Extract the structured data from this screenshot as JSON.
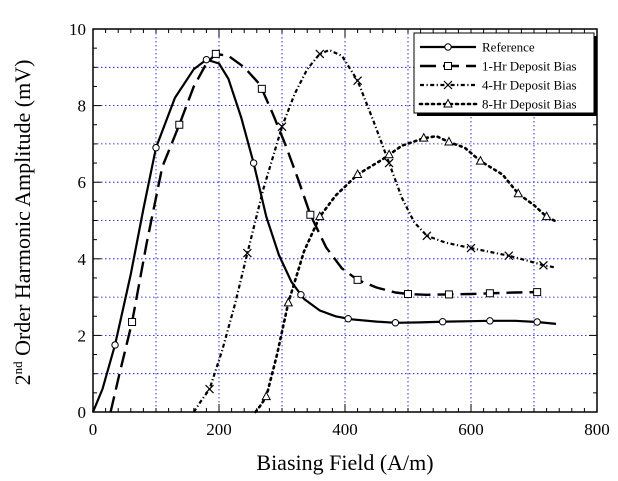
{
  "chart_data": {
    "type": "line",
    "xlabel": "Biasing Field (A/m)",
    "ylabel_sup": "nd",
    "ylabel_pre": "2",
    "ylabel_rest": " Order Harmonic Amplitude (mV)",
    "xlim": [
      0,
      800
    ],
    "ylim": [
      0,
      10
    ],
    "xticks": [
      0,
      200,
      400,
      600,
      800
    ],
    "yticks": [
      0,
      2,
      4,
      6,
      8,
      10
    ],
    "x_minor_step": 20,
    "y_minor_step": 0.5,
    "grid": true,
    "legend_position": "top-right",
    "series": [
      {
        "name": "Reference",
        "dash": "solid",
        "marker": "circle",
        "points": [
          [
            0,
            0
          ],
          [
            15,
            0.6
          ],
          [
            35,
            1.75
          ],
          [
            60,
            3.6
          ],
          [
            80,
            5.3
          ],
          [
            100,
            6.9
          ],
          [
            130,
            8.2
          ],
          [
            160,
            8.95
          ],
          [
            180,
            9.2
          ],
          [
            200,
            9.1
          ],
          [
            215,
            8.7
          ],
          [
            235,
            7.7
          ],
          [
            255,
            6.5
          ],
          [
            275,
            5.1
          ],
          [
            295,
            4.1
          ],
          [
            315,
            3.4
          ],
          [
            335,
            2.95
          ],
          [
            360,
            2.65
          ],
          [
            385,
            2.5
          ],
          [
            410,
            2.42
          ],
          [
            450,
            2.36
          ],
          [
            480,
            2.33
          ],
          [
            520,
            2.34
          ],
          [
            560,
            2.36
          ],
          [
            600,
            2.37
          ],
          [
            630,
            2.38
          ],
          [
            670,
            2.38
          ],
          [
            705,
            2.35
          ],
          [
            735,
            2.3
          ]
        ],
        "marker_x": [
          35,
          100,
          180,
          255,
          330,
          405,
          480,
          555,
          630,
          705
        ]
      },
      {
        "name": "1-Hr Deposit Bias",
        "dash": "long-dash",
        "marker": "square",
        "points": [
          [
            28,
            0
          ],
          [
            42,
            1.0
          ],
          [
            62,
            2.35
          ],
          [
            85,
            4.4
          ],
          [
            110,
            6.4
          ],
          [
            137,
            7.5
          ],
          [
            160,
            8.5
          ],
          [
            180,
            9.1
          ],
          [
            195,
            9.35
          ],
          [
            215,
            9.3
          ],
          [
            240,
            9.0
          ],
          [
            265,
            8.55
          ],
          [
            285,
            7.8
          ],
          [
            305,
            7.0
          ],
          [
            325,
            6.1
          ],
          [
            345,
            5.15
          ],
          [
            370,
            4.3
          ],
          [
            395,
            3.75
          ],
          [
            420,
            3.45
          ],
          [
            450,
            3.25
          ],
          [
            480,
            3.12
          ],
          [
            500,
            3.08
          ],
          [
            530,
            3.06
          ],
          [
            565,
            3.07
          ],
          [
            600,
            3.08
          ],
          [
            630,
            3.1
          ],
          [
            670,
            3.12
          ],
          [
            705,
            3.13
          ]
        ],
        "marker_x": [
          62,
          137,
          195,
          268,
          345,
          420,
          500,
          565,
          630,
          705
        ]
      },
      {
        "name": "4-Hr Deposit Bias",
        "dash": "dot-dash",
        "marker": "cross",
        "points": [
          [
            160,
            0
          ],
          [
            170,
            0.25
          ],
          [
            185,
            0.6
          ],
          [
            205,
            1.6
          ],
          [
            225,
            2.8
          ],
          [
            245,
            4.15
          ],
          [
            270,
            5.8
          ],
          [
            300,
            7.45
          ],
          [
            320,
            8.3
          ],
          [
            340,
            8.95
          ],
          [
            360,
            9.35
          ],
          [
            375,
            9.45
          ],
          [
            395,
            9.3
          ],
          [
            420,
            8.65
          ],
          [
            445,
            7.6
          ],
          [
            470,
            6.5
          ],
          [
            490,
            5.6
          ],
          [
            510,
            4.95
          ],
          [
            530,
            4.6
          ],
          [
            560,
            4.42
          ],
          [
            600,
            4.28
          ],
          [
            630,
            4.18
          ],
          [
            660,
            4.08
          ],
          [
            690,
            3.95
          ],
          [
            715,
            3.83
          ],
          [
            735,
            3.77
          ]
        ],
        "marker_x": [
          185,
          245,
          300,
          360,
          420,
          470,
          530,
          600,
          660,
          715
        ]
      },
      {
        "name": "8-Hr Deposit Bias",
        "dash": "dotted",
        "marker": "triangle",
        "points": [
          [
            258,
            0
          ],
          [
            265,
            0.15
          ],
          [
            275,
            0.4
          ],
          [
            292,
            1.5
          ],
          [
            310,
            2.85
          ],
          [
            335,
            4.2
          ],
          [
            360,
            5.1
          ],
          [
            385,
            5.65
          ],
          [
            420,
            6.2
          ],
          [
            460,
            6.6
          ],
          [
            490,
            6.95
          ],
          [
            525,
            7.15
          ],
          [
            545,
            7.2
          ],
          [
            565,
            7.05
          ],
          [
            590,
            6.9
          ],
          [
            615,
            6.55
          ],
          [
            650,
            6.2
          ],
          [
            675,
            5.7
          ],
          [
            700,
            5.4
          ],
          [
            720,
            5.1
          ],
          [
            738,
            4.95
          ]
        ],
        "marker_x": [
          275,
          310,
          360,
          420,
          470,
          525,
          565,
          615,
          675,
          720
        ]
      }
    ]
  }
}
